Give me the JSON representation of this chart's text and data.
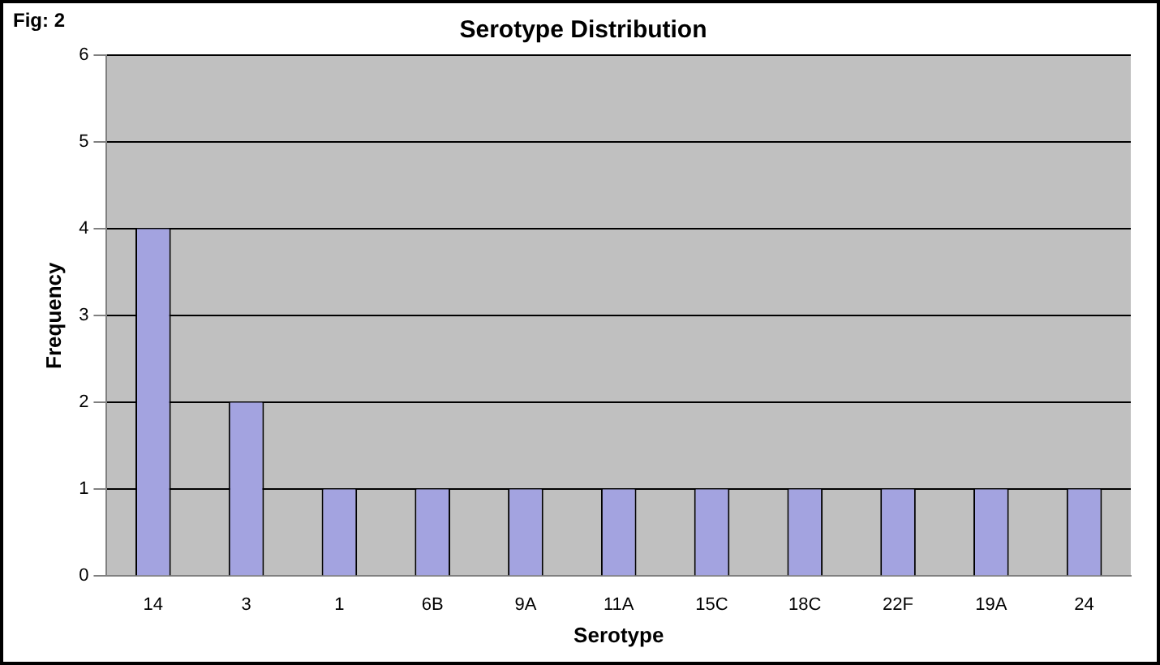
{
  "chart_data": {
    "type": "bar",
    "title": "Serotype Distribution",
    "xlabel": "Serotype",
    "ylabel": "Frequency",
    "annotations": [
      "Fig: 2"
    ],
    "categories": [
      "14",
      "3",
      "1",
      "6B",
      "9A",
      "11A",
      "15C",
      "18C",
      "22F",
      "19A",
      "24"
    ],
    "values": [
      4,
      2,
      1,
      1,
      1,
      1,
      1,
      1,
      1,
      1,
      1
    ],
    "color": "#a3a3e0",
    "ylim": [
      0,
      6
    ],
    "yticks": [
      0,
      1,
      2,
      3,
      4,
      5,
      6
    ],
    "grid": "y",
    "legend": false
  }
}
